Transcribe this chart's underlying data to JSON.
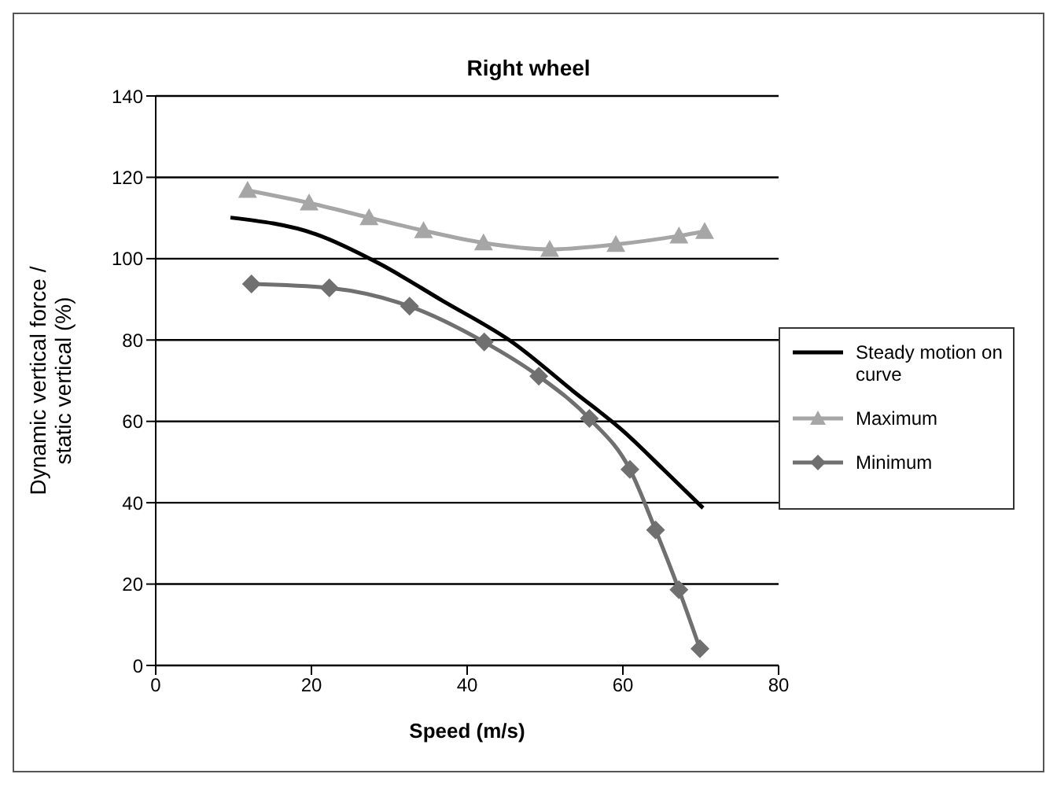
{
  "chart_data": {
    "type": "line",
    "title": "Right wheel",
    "xlabel": "Speed (m/s)",
    "ylabel": "Dynamic vertical force / static vertical (%)",
    "xlim": [
      0,
      80
    ],
    "xticks": [
      0,
      20,
      40,
      60,
      80
    ],
    "ylim": [
      0,
      140
    ],
    "yticks": [
      0,
      20,
      40,
      60,
      80,
      100,
      120,
      140
    ],
    "grid": "y",
    "legend": "right",
    "series": [
      {
        "name": "Steady motion on curve",
        "color": "#000000",
        "marker": "none",
        "x": [
          9.6,
          20.6,
          28.7,
          36.8,
          46.0,
          53.7,
          60.0,
          65.2,
          70.3
        ],
        "values": [
          110.1,
          106,
          98.8,
          89.7,
          79.2,
          67.3,
          57.7,
          48.2,
          38.7
        ]
      },
      {
        "name": "Maximum",
        "color": "#a6a6a6",
        "marker": "triangle",
        "x": [
          11.8,
          19.7,
          27.4,
          34.4,
          42.1,
          50.6,
          59.1,
          67.2,
          70.5
        ],
        "values": [
          116.8,
          113.7,
          110.1,
          106.9,
          103.9,
          102.3,
          103.5,
          105.6,
          106.7
        ]
      },
      {
        "name": "Minimum",
        "color": "#707070",
        "marker": "diamond",
        "x": [
          12.3,
          22.3,
          32.6,
          42.2,
          49.2,
          55.7,
          60.9,
          64.2,
          67.2,
          69.9
        ],
        "values": [
          93.8,
          92.8,
          88.3,
          79.5,
          71.1,
          60.7,
          48.2,
          33.3,
          18.6,
          4.1
        ]
      }
    ]
  }
}
